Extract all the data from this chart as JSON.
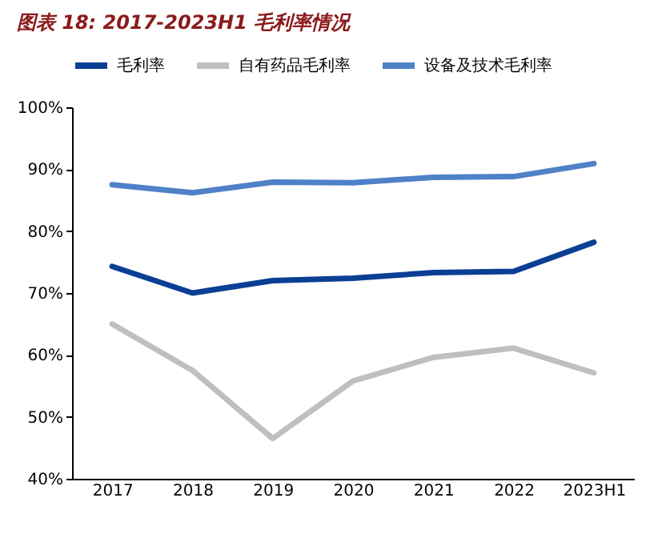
{
  "chart_data": {
    "type": "line",
    "title": "图表 18: 2017-2023H1 毛利率情况",
    "categories": [
      "2017",
      "2018",
      "2019",
      "2020",
      "2021",
      "2022",
      "2023H1"
    ],
    "series": [
      {
        "name": "毛利率",
        "color": "#0b3f94",
        "values": [
          74.3,
          70.0,
          72.0,
          72.4,
          73.3,
          73.5,
          78.2
        ]
      },
      {
        "name": "自有药品毛利率",
        "color": "#bfbfbf",
        "values": [
          65.0,
          57.5,
          46.5,
          55.8,
          59.6,
          61.1,
          57.1
        ]
      },
      {
        "name": "设备及技术毛利率",
        "color": "#4f81c7",
        "values": [
          87.5,
          86.2,
          87.9,
          87.8,
          88.7,
          88.8,
          90.9
        ]
      }
    ],
    "ylim": [
      40,
      100
    ],
    "yticks": [
      {
        "value": 40,
        "label": "40%"
      },
      {
        "value": 50,
        "label": "50%"
      },
      {
        "value": 60,
        "label": "60%"
      },
      {
        "value": 70,
        "label": "70%"
      },
      {
        "value": 80,
        "label": "80%"
      },
      {
        "value": 90,
        "label": "90%"
      },
      {
        "value": 100,
        "label": "100%"
      }
    ],
    "grid": false,
    "legend": "top",
    "marker": "none",
    "line_style": "solid"
  }
}
